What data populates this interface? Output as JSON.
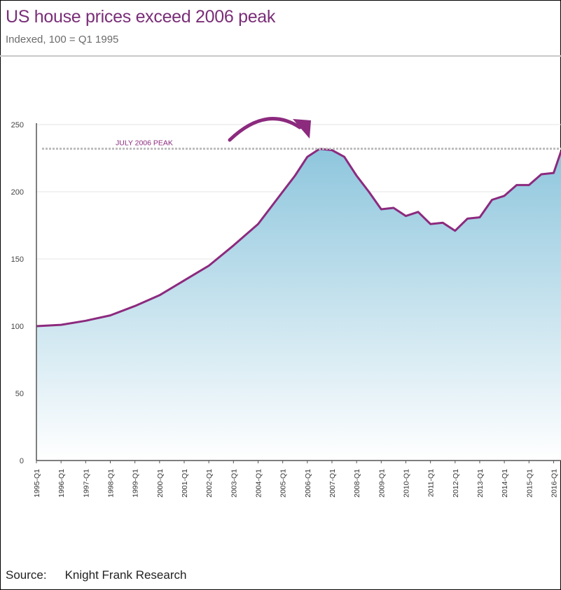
{
  "header": {
    "title": "US house prices exceed 2006 peak",
    "subtitle": "Indexed, 100 = Q1 1995"
  },
  "footer": {
    "source_label": "Source:",
    "source_value": "Knight Frank Research"
  },
  "colors": {
    "title": "#7a2e78",
    "line": "#8c2a7e",
    "area_top": "#8ec6dd",
    "area_bottom": "#ffffff",
    "peak_line": "#bdbdbd",
    "annotation": "#8c2a7e"
  },
  "chart_data": {
    "type": "area",
    "title": "US house prices exceed 2006 peak",
    "subtitle": "Indexed, 100 = Q1 1995",
    "xlabel": "",
    "ylabel": "",
    "ylim": [
      0,
      250
    ],
    "yticks": [
      0,
      50,
      100,
      150,
      200,
      250
    ],
    "grid": true,
    "legend": "none",
    "x_tick_labels": [
      "1995-Q1",
      "1996-Q1",
      "1997-Q1",
      "1998-Q1",
      "1999-Q1",
      "2000-Q1",
      "2001-Q1",
      "2002-Q1",
      "2003-Q1",
      "2004-Q1",
      "2005-Q1",
      "2006-Q1",
      "2007-Q1",
      "2008-Q1",
      "2009-Q1",
      "2010-Q1",
      "2011-Q1",
      "2012-Q1",
      "2013-Q1",
      "2014-Q1",
      "2015-Q1",
      "2016-Q1"
    ],
    "x_tick_years": [
      1995,
      1996,
      1997,
      1998,
      1999,
      2000,
      2001,
      2002,
      2003,
      2004,
      2005,
      2006,
      2007,
      2008,
      2009,
      2010,
      2011,
      2012,
      2013,
      2014,
      2015,
      2016
    ],
    "xlim": [
      1995.0,
      2016.3
    ],
    "series": [
      {
        "name": "",
        "x": [
          1995.0,
          1996.0,
          1997.0,
          1998.0,
          1999.0,
          2000.0,
          2001.0,
          2002.0,
          2003.0,
          2004.0,
          2004.5,
          2005.0,
          2005.5,
          2006.0,
          2006.5,
          2007.0,
          2007.5,
          2008.0,
          2008.5,
          2009.0,
          2009.5,
          2010.0,
          2010.5,
          2011.0,
          2011.5,
          2012.0,
          2012.5,
          2013.0,
          2013.5,
          2014.0,
          2014.5,
          2015.0,
          2015.5,
          2016.0,
          2016.3
        ],
        "y": [
          100,
          101,
          104,
          108,
          115,
          123,
          134,
          145,
          160,
          176,
          188,
          200,
          212,
          226,
          232,
          231,
          226,
          212,
          200,
          187,
          188,
          182,
          185,
          176,
          177,
          171,
          180,
          181,
          194,
          197,
          205,
          205,
          213,
          214,
          230
        ]
      }
    ],
    "annotations": [
      {
        "text": "JULY 2006 PEAK",
        "y": 232,
        "type": "reference_line"
      }
    ]
  }
}
